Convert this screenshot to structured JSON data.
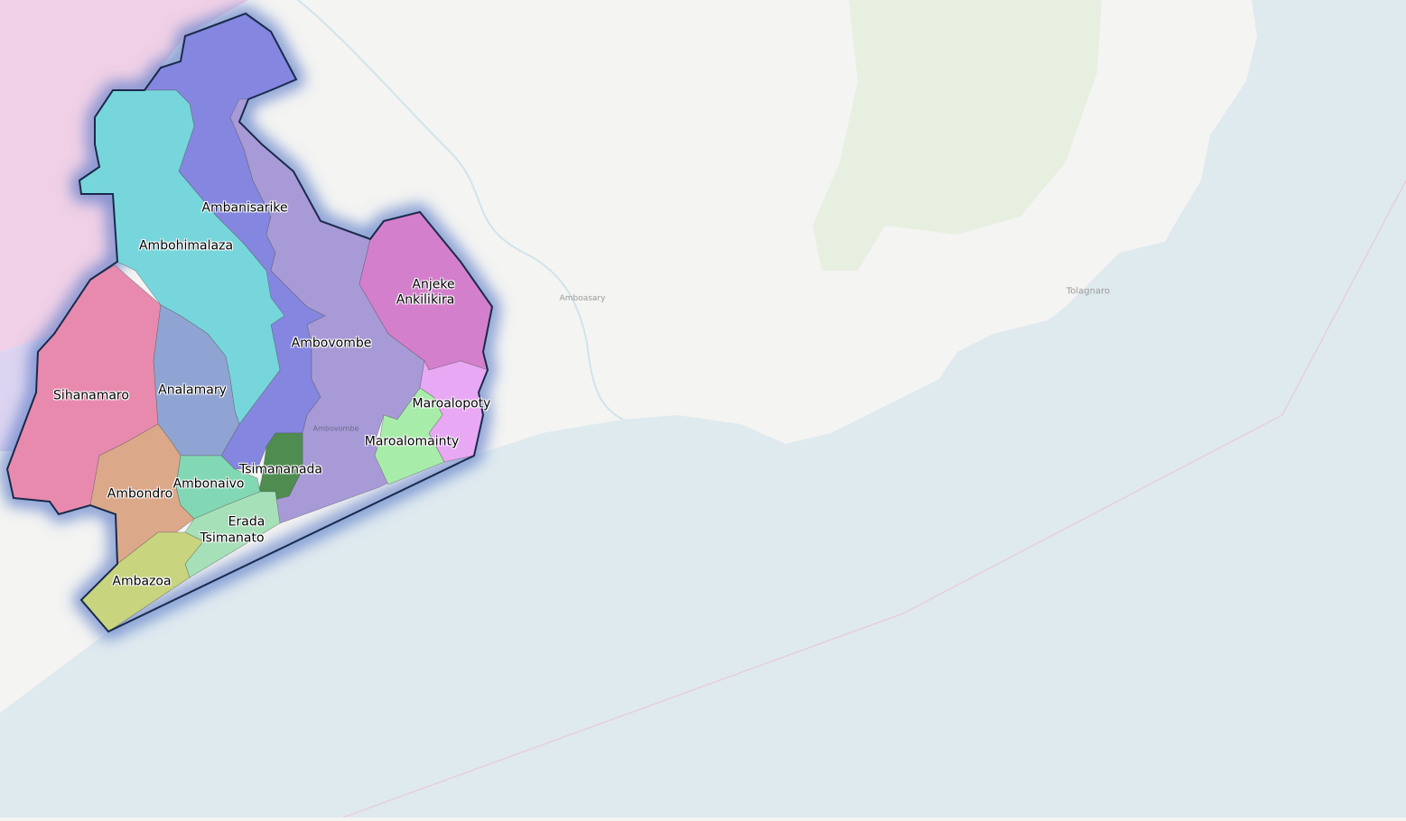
{
  "map": {
    "colors": {
      "land": "#f4f4f2",
      "sea": "#dfeaef",
      "neighbor_region": "#f0d0e6",
      "neighbor_region_2": "#dcd4f0",
      "forest": "#e4eedc",
      "outline": "#1a2a4a",
      "glow": "#5a7ac8"
    },
    "regions": [
      {
        "name": "Ambanisarike",
        "color": "#8486e0"
      },
      {
        "name": "Ambohimalaza",
        "color": "#76d6dc"
      },
      {
        "name": "Ambovombe",
        "color": "#a89ad6"
      },
      {
        "name": "Anjeke Ankilikira",
        "color": "#d47fcc"
      },
      {
        "name": "Maroalopoty",
        "color": "#e8a8f4"
      },
      {
        "name": "Maroalomainty",
        "color": "#a8ecaa"
      },
      {
        "name": "Tsimananada",
        "color": "#4e8c50"
      },
      {
        "name": "Sihanamaro",
        "color": "#e88aae"
      },
      {
        "name": "Analamary",
        "color": "#8fa4d2"
      },
      {
        "name": "Ambondro",
        "color": "#dca88a"
      },
      {
        "name": "Ambonaivo",
        "color": "#82d8b4"
      },
      {
        "name": "Erada Tsimanato",
        "color": "#a6e0b8"
      },
      {
        "name": "Ambazoa",
        "color": "#c8d47e"
      }
    ],
    "labels": {
      "ambanisarike": "Ambanisarike",
      "ambohimalaza": "Ambohimalaza",
      "ambovombe": "Ambovombe",
      "anjeke_1": "Anjeke",
      "anjeke_2": "Ankilikira",
      "maroalopoty": "Maroalopoty",
      "maroalomainty": "Maroalomainty",
      "tsimananada": "Tsimananada",
      "sihanamaro": "Sihanamaro",
      "analamary": "Analamary",
      "ambondro": "Ambondro",
      "ambonaivo": "Ambonaivo",
      "erada_1": "Erada",
      "erada_2": "Tsimanato",
      "ambazoa": "Ambazoa"
    },
    "basemap_labels": {
      "amboasary": "Amboasary",
      "tolagnaro": "Tolagnaro",
      "ambovombe_town": "Ambovombe"
    }
  }
}
